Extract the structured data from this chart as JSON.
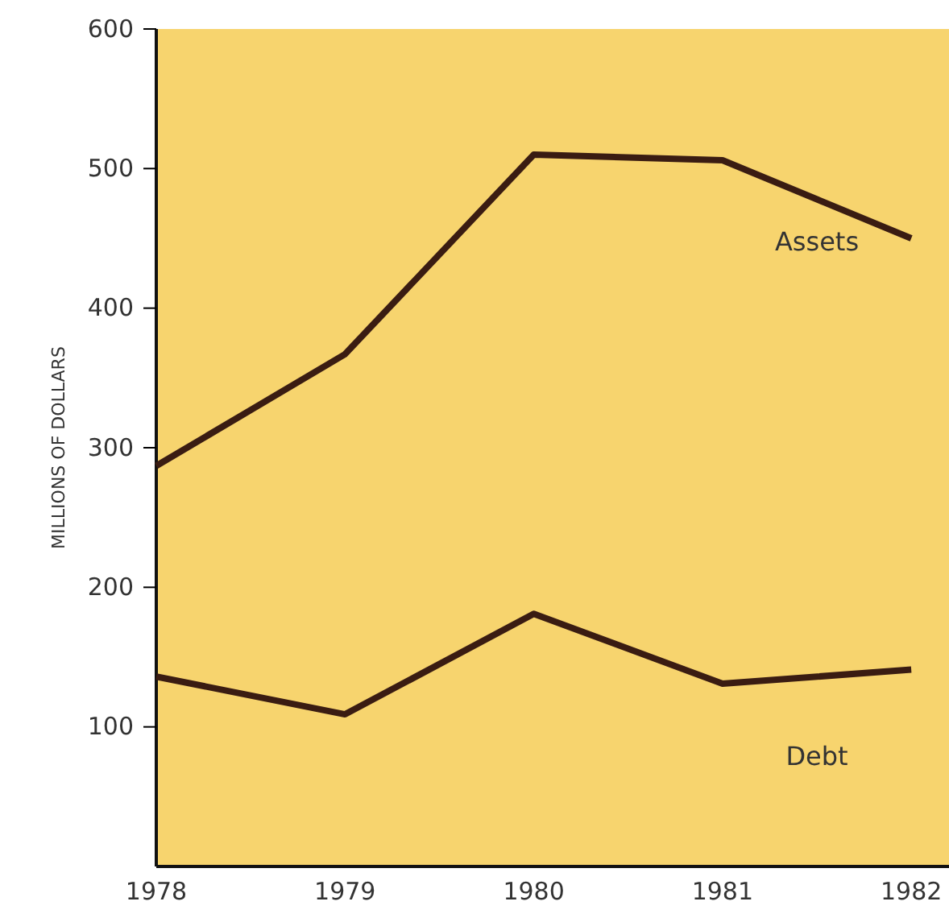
{
  "chart_data": {
    "type": "line",
    "ylabel": "MILLIONS OF DOLLARS",
    "x": [
      1978,
      1979,
      1980,
      1981,
      1982
    ],
    "xlim": [
      1978,
      1982.2
    ],
    "xticks": [
      1978,
      1979,
      1980,
      1981,
      1982
    ],
    "ylim": [
      0,
      600
    ],
    "yticks": [
      100,
      200,
      300,
      400,
      500,
      600
    ],
    "grid": false,
    "legend": false,
    "marker": "none",
    "line_style": "solid",
    "series": [
      {
        "name": "Assets",
        "color": "#3a1c12",
        "values": [
          287,
          367,
          510,
          506,
          450
        ]
      },
      {
        "name": "Debt",
        "color": "#3a1c12",
        "values": [
          136,
          109,
          181,
          131,
          141
        ]
      }
    ]
  }
}
